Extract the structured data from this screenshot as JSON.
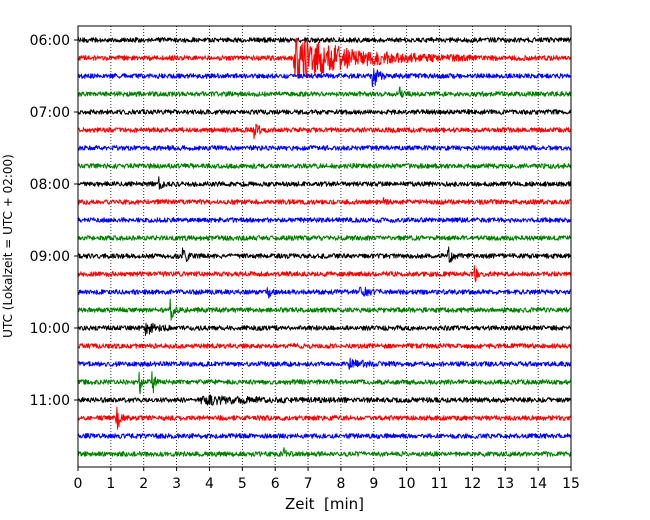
{
  "chart_data": {
    "type": "line",
    "title": "",
    "xlabel": "Zeit  [min]",
    "ylabel": "UTC (Lokalzeit = UTC + 02:00)",
    "xlim": [
      0,
      15
    ],
    "x_ticks": [
      0,
      1,
      2,
      3,
      4,
      5,
      6,
      7,
      8,
      9,
      10,
      11,
      12,
      13,
      14,
      15
    ],
    "x_tick_labels": [
      "0",
      "1",
      "2",
      "3",
      "4",
      "5",
      "6",
      "7",
      "8",
      "9",
      "10",
      "11",
      "12",
      "13",
      "14",
      "15"
    ],
    "y_tick_labels": [
      "06:00",
      "07:00",
      "08:00",
      "09:00",
      "10:00",
      "11:00"
    ],
    "grid": "vertical dotted lines at each minute",
    "trace_colors": [
      "#000000",
      "#ff0000",
      "#0000ff",
      "#008000"
    ],
    "rows_per_hour": 4,
    "minutes_per_row": 15,
    "traces": [
      {
        "start": "06:00",
        "color": "#000000",
        "events": []
      },
      {
        "start": "06:15",
        "color": "#ff0000",
        "events": [
          {
            "t": 6.6,
            "amp": 1.0,
            "decay": 1.6
          }
        ]
      },
      {
        "start": "06:30",
        "color": "#0000ff",
        "events": [
          {
            "t": 9.0,
            "amp": 0.45,
            "decay": 0.15
          }
        ]
      },
      {
        "start": "06:45",
        "color": "#008000",
        "events": [
          {
            "t": 9.8,
            "amp": 0.3,
            "decay": 0.08
          }
        ]
      },
      {
        "start": "07:00",
        "color": "#000000",
        "events": []
      },
      {
        "start": "07:15",
        "color": "#ff0000",
        "events": [
          {
            "t": 5.4,
            "amp": 0.3,
            "decay": 0.1
          }
        ]
      },
      {
        "start": "07:30",
        "color": "#0000ff",
        "events": []
      },
      {
        "start": "07:45",
        "color": "#008000",
        "events": []
      },
      {
        "start": "08:00",
        "color": "#000000",
        "events": [
          {
            "t": 2.5,
            "amp": 0.25,
            "decay": 0.05
          }
        ]
      },
      {
        "start": "08:15",
        "color": "#ff0000",
        "events": [
          {
            "t": 9.3,
            "amp": 0.2,
            "decay": 0.05
          }
        ]
      },
      {
        "start": "08:30",
        "color": "#0000ff",
        "events": []
      },
      {
        "start": "08:45",
        "color": "#008000",
        "events": []
      },
      {
        "start": "09:00",
        "color": "#000000",
        "events": [
          {
            "t": 3.2,
            "amp": 0.45,
            "decay": 0.1
          },
          {
            "t": 11.3,
            "amp": 0.4,
            "decay": 0.08
          }
        ]
      },
      {
        "start": "09:15",
        "color": "#ff0000",
        "events": [
          {
            "t": 12.1,
            "amp": 0.3,
            "decay": 0.06
          }
        ]
      },
      {
        "start": "09:30",
        "color": "#0000ff",
        "events": [
          {
            "t": 5.8,
            "amp": 0.25,
            "decay": 0.06
          },
          {
            "t": 8.6,
            "amp": 0.25,
            "decay": 0.2
          }
        ]
      },
      {
        "start": "09:45",
        "color": "#008000",
        "events": [
          {
            "t": 2.8,
            "amp": 0.55,
            "decay": 0.1
          }
        ]
      },
      {
        "start": "10:00",
        "color": "#000000",
        "events": [
          {
            "t": 2.1,
            "amp": 0.25,
            "decay": 0.25
          }
        ]
      },
      {
        "start": "10:15",
        "color": "#ff0000",
        "events": []
      },
      {
        "start": "10:30",
        "color": "#0000ff",
        "events": [
          {
            "t": 8.3,
            "amp": 0.2,
            "decay": 0.4
          }
        ]
      },
      {
        "start": "10:45",
        "color": "#008000",
        "events": [
          {
            "t": 1.9,
            "amp": 0.5,
            "decay": 0.04
          },
          {
            "t": 2.3,
            "amp": 0.45,
            "decay": 0.05
          }
        ]
      },
      {
        "start": "11:00",
        "color": "#000000",
        "events": [
          {
            "t": 3.8,
            "amp": 0.15,
            "decay": 1.5
          }
        ]
      },
      {
        "start": "11:15",
        "color": "#ff0000",
        "events": [
          {
            "t": 1.2,
            "amp": 0.55,
            "decay": 0.08
          }
        ]
      },
      {
        "start": "11:30",
        "color": "#0000ff",
        "events": []
      },
      {
        "start": "11:45",
        "color": "#008000",
        "events": [
          {
            "t": 6.3,
            "amp": 0.25,
            "decay": 0.05
          }
        ]
      }
    ]
  }
}
